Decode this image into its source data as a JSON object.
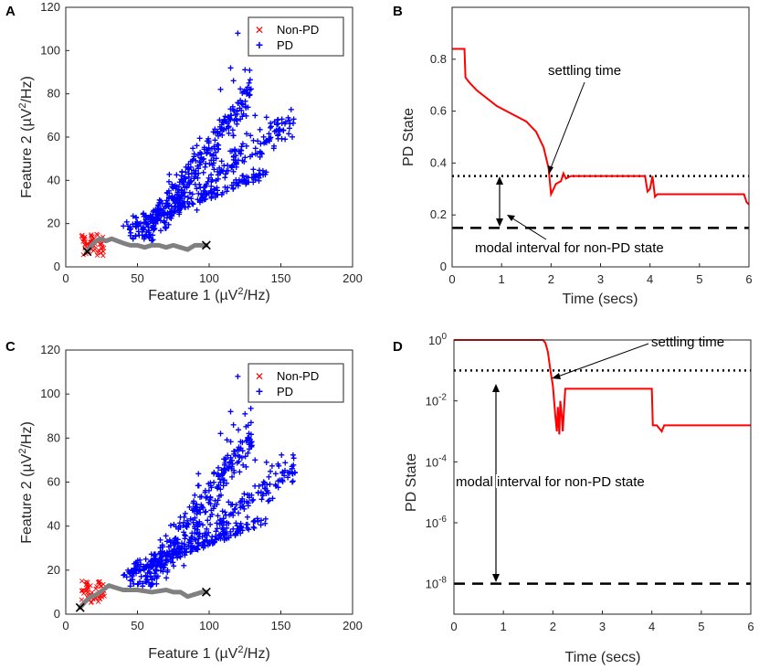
{
  "chart_data": [
    {
      "panel": "A",
      "type": "scatter",
      "xlabel": "Feature 1 (µV²/Hz)",
      "ylabel": "Feature 2 (µV²/Hz)",
      "xlim": [
        0,
        200
      ],
      "ylim": [
        0,
        120
      ],
      "xticks": [
        0,
        50,
        100,
        150,
        200
      ],
      "yticks": [
        0,
        20,
        40,
        60,
        80,
        100,
        120
      ],
      "legend": {
        "position": "top-right",
        "entries": [
          "Non-PD",
          "PD"
        ]
      },
      "series": [
        {
          "name": "Non-PD",
          "marker": "x",
          "color": "#ff0000"
        },
        {
          "name": "PD",
          "marker": "+",
          "color": "#0000ff"
        },
        {
          "name": "trajectory",
          "color": "#808080",
          "x": [
            15,
            18,
            21,
            24,
            28,
            32,
            36,
            40,
            45,
            50,
            55,
            60,
            65,
            70,
            75,
            80,
            85,
            90,
            95,
            98
          ],
          "y": [
            7,
            10,
            12,
            13,
            12,
            13,
            12,
            11,
            10,
            10,
            9,
            10,
            10,
            9,
            10,
            9,
            8,
            10,
            10,
            10
          ]
        },
        {
          "name": "endpoints",
          "marker": "X",
          "color": "#000000",
          "x": [
            15,
            98
          ],
          "y": [
            7,
            10
          ]
        }
      ]
    },
    {
      "panel": "B",
      "type": "line",
      "xlabel": "Time (secs)",
      "ylabel": "PD State",
      "xlim": [
        0,
        6
      ],
      "ylim": [
        0,
        1
      ],
      "xticks": [
        0,
        1,
        2,
        3,
        4,
        5,
        6
      ],
      "yticks": [
        0,
        0.2,
        0.4,
        0.6,
        0.8
      ],
      "series": [
        {
          "name": "PD state",
          "color": "#ff0000",
          "x": [
            0,
            0.25,
            0.27,
            0.35,
            0.5,
            0.7,
            0.9,
            1.1,
            1.3,
            1.5,
            1.7,
            1.85,
            1.95,
            2.0,
            2.05,
            2.1,
            2.2,
            2.25,
            2.3,
            2.4,
            2.6,
            3.0,
            3.5,
            3.9,
            3.95,
            4.0,
            4.05,
            4.1,
            4.15,
            4.2,
            5.0,
            5.9,
            5.95,
            6.0
          ],
          "y": [
            0.84,
            0.84,
            0.73,
            0.71,
            0.68,
            0.65,
            0.62,
            0.6,
            0.58,
            0.56,
            0.52,
            0.46,
            0.38,
            0.28,
            0.3,
            0.32,
            0.33,
            0.36,
            0.34,
            0.35,
            0.35,
            0.35,
            0.35,
            0.35,
            0.29,
            0.3,
            0.35,
            0.27,
            0.28,
            0.28,
            0.28,
            0.28,
            0.25,
            0.24
          ]
        },
        {
          "name": "settling threshold",
          "style": "dotted",
          "y": 0.35
        },
        {
          "name": "non-PD modal interval",
          "style": "dashed",
          "y": 0.15
        }
      ],
      "annotations": [
        "settling time",
        "modal interval for non-PD state"
      ]
    },
    {
      "panel": "C",
      "type": "scatter",
      "xlabel": "Feature 1 (µV²/Hz)",
      "ylabel": "Feature 2 (µV²/Hz)",
      "xlim": [
        0,
        200
      ],
      "ylim": [
        0,
        120
      ],
      "xticks": [
        0,
        50,
        100,
        150,
        200
      ],
      "yticks": [
        0,
        20,
        40,
        60,
        80,
        100,
        120
      ],
      "legend": {
        "position": "top-right",
        "entries": [
          "Non-PD",
          "PD"
        ]
      },
      "series": [
        {
          "name": "Non-PD",
          "marker": "x",
          "color": "#ff0000"
        },
        {
          "name": "PD",
          "marker": "+",
          "color": "#0000ff"
        },
        {
          "name": "trajectory",
          "color": "#808080",
          "x": [
            10,
            14,
            18,
            22,
            26,
            30,
            35,
            40,
            50,
            60,
            70,
            75,
            80,
            85,
            90,
            95,
            98
          ],
          "y": [
            3,
            6,
            8,
            9,
            11,
            13,
            12,
            11,
            11,
            10,
            11,
            10,
            10,
            8,
            9,
            10,
            10
          ]
        },
        {
          "name": "endpoints",
          "marker": "X",
          "color": "#000000",
          "x": [
            10,
            98
          ],
          "y": [
            3,
            10
          ]
        }
      ]
    },
    {
      "panel": "D",
      "type": "line",
      "yscale": "log",
      "xlabel": "Time (secs)",
      "ylabel": "PD State",
      "xlim": [
        0,
        6
      ],
      "ylim_log10": [
        -9,
        0
      ],
      "xticks": [
        0,
        1,
        2,
        3,
        4,
        5,
        6
      ],
      "ytick_exponents": [
        0,
        -2,
        -4,
        -6,
        -8
      ],
      "series": [
        {
          "name": "PD state (log10)",
          "color": "#ff0000",
          "x": [
            0,
            1.8,
            1.85,
            1.9,
            1.95,
            2.0,
            2.05,
            2.08,
            2.1,
            2.13,
            2.15,
            2.18,
            2.2,
            2.25,
            2.3,
            4.0,
            4.02,
            4.1,
            4.2,
            4.25,
            6.0
          ],
          "y": [
            0,
            0,
            -0.1,
            -0.4,
            -1.0,
            -1.5,
            -2.5,
            -3.0,
            -2.2,
            -3.1,
            -2.0,
            -2.5,
            -3.0,
            -1.6,
            -1.6,
            -1.6,
            -2.8,
            -2.8,
            -3.0,
            -2.8,
            -2.8
          ]
        },
        {
          "name": "settling threshold",
          "style": "dotted",
          "y": -1
        },
        {
          "name": "non-PD modal interval",
          "style": "dashed",
          "y": -8
        }
      ],
      "annotations": [
        "settling time",
        "modal interval for non-PD state"
      ]
    }
  ],
  "labels": {
    "a": {
      "panel": "A",
      "xlabel": "Feature 1 (µV",
      "xsup": "2",
      "xend": "/Hz)",
      "ylabel": "Feature 2 (µV",
      "ysup": "2",
      "yend": "/Hz)",
      "leg1": "Non-PD",
      "leg2": "PD"
    },
    "b": {
      "panel": "B",
      "xlabel": "Time (secs)",
      "ylabel": "PD State",
      "ann1": "settling time",
      "ann2": "modal interval for non-PD state"
    },
    "c": {
      "panel": "C",
      "xlabel": "Feature 1 (µV",
      "xsup": "2",
      "xend": "/Hz)",
      "ylabel": "Feature 2 (µV",
      "ysup": "2",
      "yend": "/Hz)",
      "leg1": "Non-PD",
      "leg2": "PD"
    },
    "d": {
      "panel": "D",
      "xlabel": "Time (secs)",
      "ylabel": "PD State",
      "ann1": "settling time",
      "ann2": "modal interval for non-PD state"
    }
  },
  "colors": {
    "pd": "#0000ff",
    "nonpd": "#ff0000",
    "traj": "#808080",
    "state": "#ff0000"
  }
}
